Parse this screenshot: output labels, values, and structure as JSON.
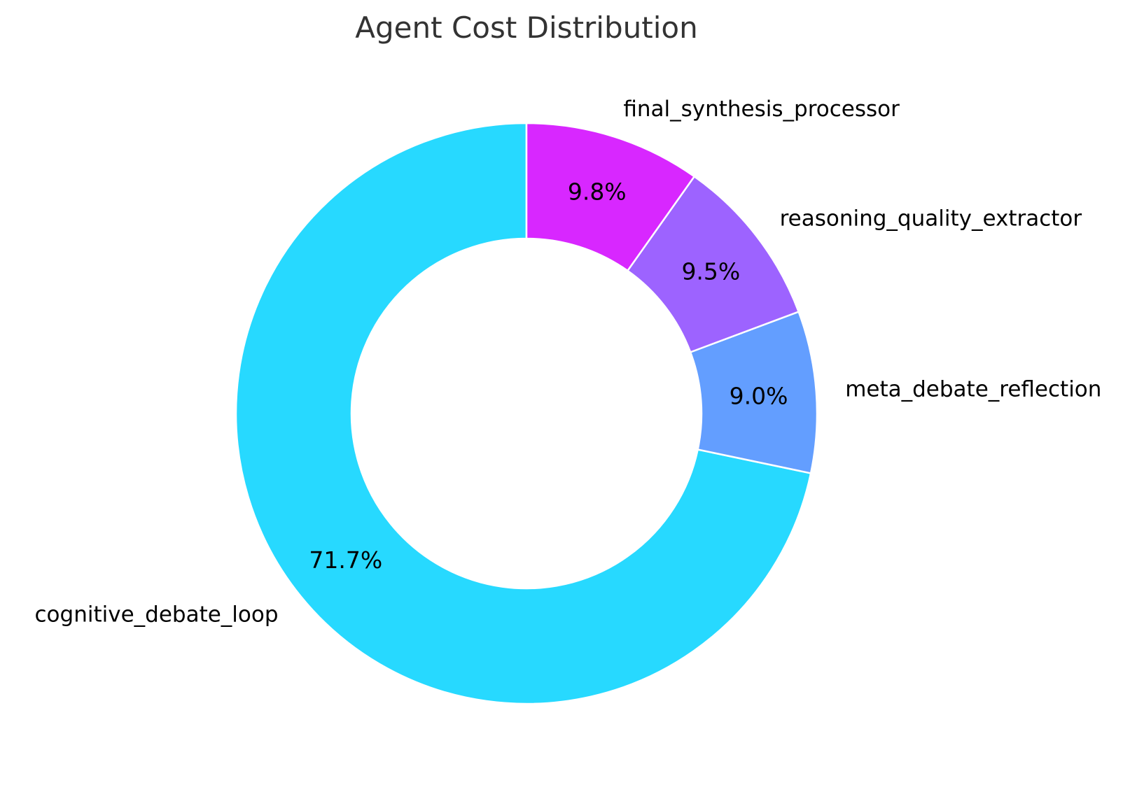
{
  "chart_data": {
    "type": "pie",
    "variant": "donut",
    "title": "Agent Cost Distribution",
    "start_angle_deg": 90,
    "direction": "counterclockwise",
    "slices": [
      {
        "label": "cognitive_debate_loop",
        "value": 71.7,
        "pct_text": "71.7%",
        "color": "#27d9ff"
      },
      {
        "label": "meta_debate_reflection",
        "value": 9.0,
        "pct_text": "9.0%",
        "color": "#639eff"
      },
      {
        "label": "reasoning_quality_extractor",
        "value": 9.5,
        "pct_text": "9.5%",
        "color": "#9d63ff"
      },
      {
        "label": "final_synthesis_processor",
        "value": 9.8,
        "pct_text": "9.8%",
        "color": "#d827ff"
      }
    ]
  }
}
